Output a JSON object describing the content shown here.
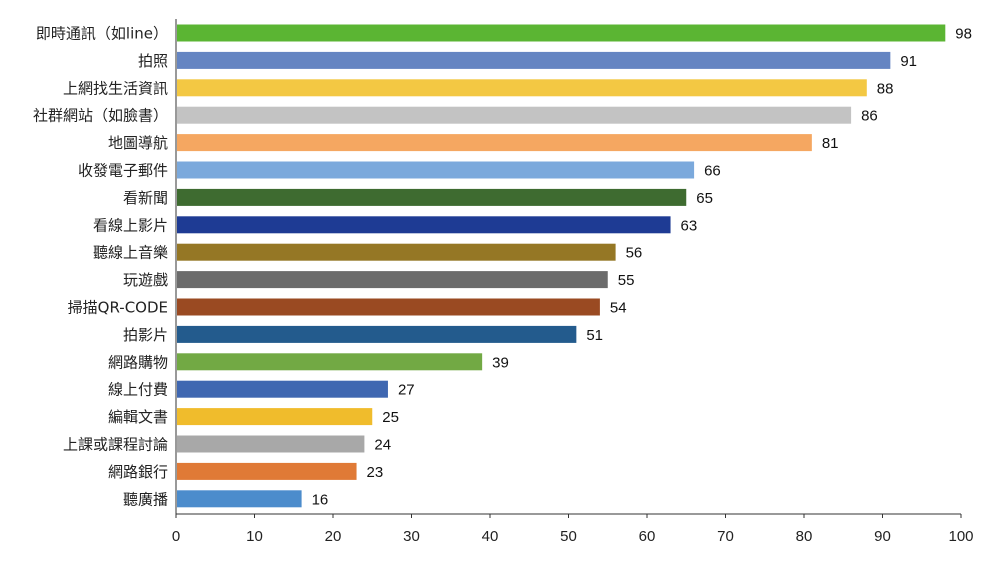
{
  "chart_data": {
    "type": "bar",
    "orientation": "horizontal",
    "title": "",
    "xlabel": "",
    "ylabel": "",
    "xlim": [
      0,
      100
    ],
    "x_ticks": [
      "0",
      "10",
      "20",
      "30",
      "40",
      "50",
      "60",
      "70",
      "80",
      "90",
      "100"
    ],
    "grid": false,
    "legend": "none",
    "categories": [
      "即時通訊（如line）",
      "拍照",
      "上網找生活資訊",
      "社群網站（如臉書）",
      "地圖導航",
      "收發電子郵件",
      "看新聞",
      "看線上影片",
      "聽線上音樂",
      "玩遊戲",
      "掃描QR-CODE",
      "拍影片",
      "網路購物",
      "線上付費",
      "編輯文書",
      "上課或課程討論",
      "網路銀行",
      "聽廣播"
    ],
    "values": [
      98,
      91,
      88,
      86,
      81,
      66,
      65,
      63,
      56,
      55,
      54,
      51,
      39,
      27,
      25,
      24,
      23,
      16
    ],
    "value_labels": [
      "98",
      "91",
      "88",
      "86",
      "81",
      "66",
      "65",
      "63",
      "56",
      "55",
      "54",
      "51",
      "39",
      "27",
      "25",
      "24",
      "23",
      "16"
    ],
    "colors": [
      "#5bb533",
      "#6585c2",
      "#f3c843",
      "#c3c3c3",
      "#f5a761",
      "#7ba9dc",
      "#3e6b30",
      "#1e3b94",
      "#957725",
      "#6b6b6b",
      "#9a4a22",
      "#235b8d",
      "#72a944",
      "#3f67b1",
      "#f0bc2c",
      "#a8a8a8",
      "#e07a36",
      "#4c8ccc"
    ]
  }
}
